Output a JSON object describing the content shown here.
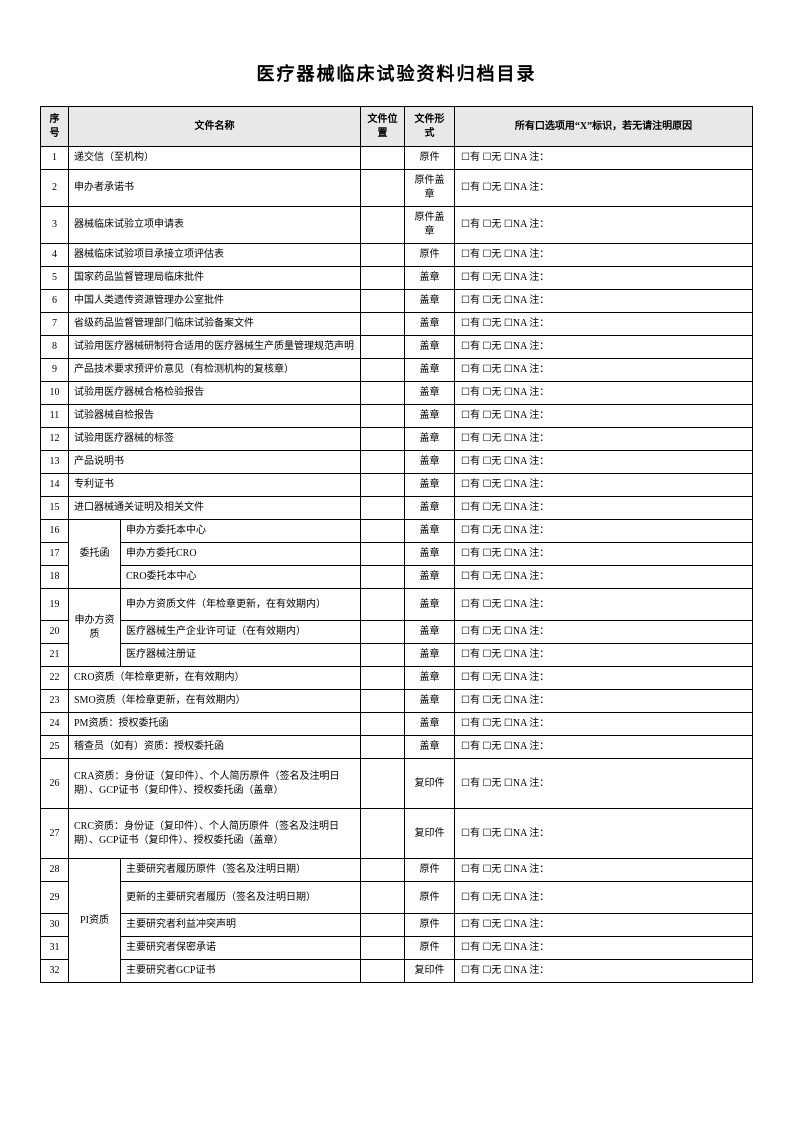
{
  "title": "医疗器械临床试验资料归档目录",
  "headers": {
    "seq": "序号",
    "name": "文件名称",
    "loc": "文件位置",
    "form": "文件形式",
    "opt": "所有口选项用“X”标识，若无请注明原因"
  },
  "optText": "☐有 ☐无 ☐NA 注：",
  "groups": {
    "g16": "委托函",
    "g19": "申办方资质",
    "g28": "PI资质"
  },
  "rows": {
    "r1": {
      "seq": "1",
      "name": "递交信（至机构）",
      "form": "原件"
    },
    "r2": {
      "seq": "2",
      "name": "申办者承诺书",
      "form": "原件盖章"
    },
    "r3": {
      "seq": "3",
      "name": "器械临床试验立项申请表",
      "form": "原件盖章"
    },
    "r4": {
      "seq": "4",
      "name": "器械临床试验项目承接立项评估表",
      "form": "原件"
    },
    "r5": {
      "seq": "5",
      "name": "国家药品监督管理局临床批件",
      "form": "盖章"
    },
    "r6": {
      "seq": "6",
      "name": "中国人类遗传资源管理办公室批件",
      "form": "盖章"
    },
    "r7": {
      "seq": "7",
      "name": "省级药品监督管理部门临床试验备案文件",
      "form": "盖章"
    },
    "r8": {
      "seq": "8",
      "name": "试验用医疗器械研制符合适用的医疗器械生产质量管理规范声明",
      "form": "盖章"
    },
    "r9": {
      "seq": "9",
      "name": "产品技术要求预评价意见（有检测机构的复核章）",
      "form": "盖章"
    },
    "r10": {
      "seq": "10",
      "name": "试验用医疗器械合格检验报告",
      "form": "盖章"
    },
    "r11": {
      "seq": "11",
      "name": "试验器械自检报告",
      "form": "盖章"
    },
    "r12": {
      "seq": "12",
      "name": "试验用医疗器械的标签",
      "form": "盖章"
    },
    "r13": {
      "seq": "13",
      "name": "产品说明书",
      "form": "盖章"
    },
    "r14": {
      "seq": "14",
      "name": "专利证书",
      "form": "盖章"
    },
    "r15": {
      "seq": "15",
      "name": "进口器械通关证明及相关文件",
      "form": "盖章"
    },
    "r16": {
      "seq": "16",
      "name": "申办方委托本中心",
      "form": "盖章"
    },
    "r17": {
      "seq": "17",
      "name": "申办方委托CRO",
      "form": "盖章"
    },
    "r18": {
      "seq": "18",
      "name": "CRO委托本中心",
      "form": "盖章"
    },
    "r19": {
      "seq": "19",
      "name": "申办方资质文件（年检章更新，在有效期内）",
      "form": "盖章"
    },
    "r20": {
      "seq": "20",
      "name": "医疗器械生产企业许可证（在有效期内）",
      "form": "盖章"
    },
    "r21": {
      "seq": "21",
      "name": "医疗器械注册证",
      "form": "盖章"
    },
    "r22": {
      "seq": "22",
      "name": "CRO资质（年检章更新，在有效期内）",
      "form": "盖章"
    },
    "r23": {
      "seq": "23",
      "name": "SMO资质（年检章更新，在有效期内）",
      "form": "盖章"
    },
    "r24": {
      "seq": "24",
      "name": "PM资质：授权委托函",
      "form": "盖章"
    },
    "r25": {
      "seq": "25",
      "name": "稽查员（如有）资质：授权委托函",
      "form": "盖章"
    },
    "r26": {
      "seq": "26",
      "name": "CRA资质：身份证（复印件）、个人简历原件（签名及注明日期）、GCP证书（复印件）、授权委托函（盖章）",
      "form": "复印件"
    },
    "r27": {
      "seq": "27",
      "name": "CRC资质：身份证（复印件）、个人简历原件（签名及注明日期）、GCP证书（复印件）、授权委托函（盖章）",
      "form": "复印件"
    },
    "r28": {
      "seq": "28",
      "name": "主要研究者履历原件（签名及注明日期）",
      "form": "原件"
    },
    "r29": {
      "seq": "29",
      "name": "更新的主要研究者履历（签名及注明日期）",
      "form": "原件"
    },
    "r30": {
      "seq": "30",
      "name": "主要研究者利益冲突声明",
      "form": "原件"
    },
    "r31": {
      "seq": "31",
      "name": "主要研究者保密承诺",
      "form": "原件"
    },
    "r32": {
      "seq": "32",
      "name": "主要研究者GCP证书",
      "form": "复印件"
    }
  }
}
